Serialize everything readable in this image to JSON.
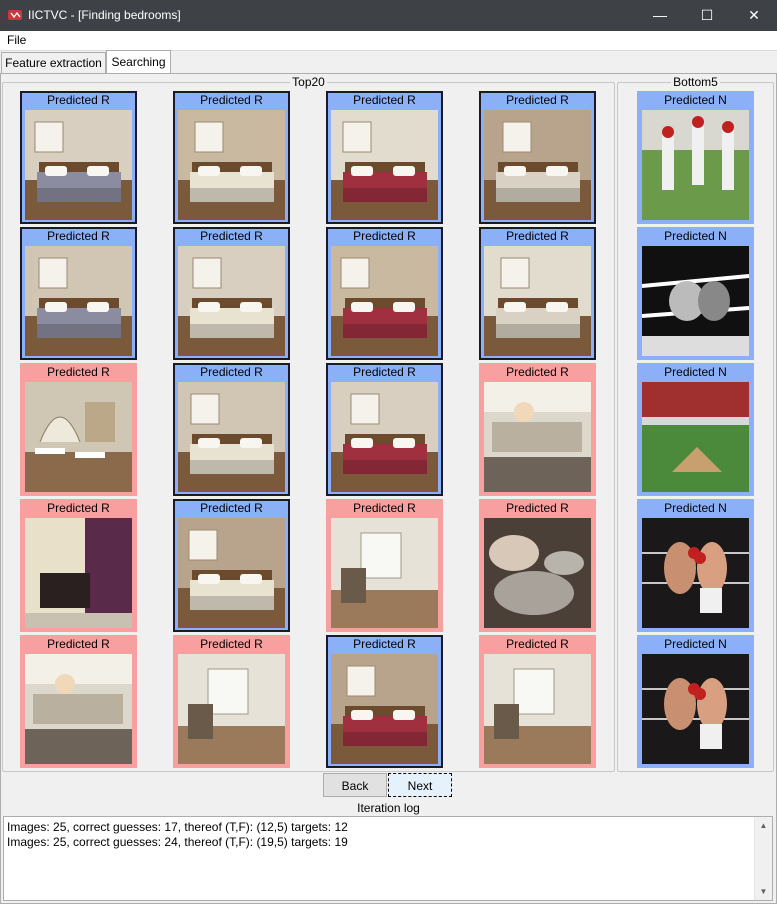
{
  "window": {
    "title": "IICTVC - [Finding bedrooms]",
    "minimize": "—",
    "maximize": "☐",
    "close": "✕"
  },
  "menu": {
    "file": "File"
  },
  "tabs": [
    {
      "label": "Feature extraction",
      "active": false
    },
    {
      "label": "Searching",
      "active": true
    }
  ],
  "top_group": {
    "title": "Top20",
    "cards": [
      {
        "label": "Predicted R",
        "kind": "r",
        "sel": true,
        "scene": "bedroom"
      },
      {
        "label": "Predicted R",
        "kind": "r",
        "sel": true,
        "scene": "bedroom"
      },
      {
        "label": "Predicted R",
        "kind": "r",
        "sel": true,
        "scene": "bedroom"
      },
      {
        "label": "Predicted R",
        "kind": "r",
        "sel": true,
        "scene": "bedroom"
      },
      {
        "label": "Predicted R",
        "kind": "r",
        "sel": true,
        "scene": "bedroom"
      },
      {
        "label": "Predicted R",
        "kind": "r",
        "sel": true,
        "scene": "bedroom"
      },
      {
        "label": "Predicted R",
        "kind": "r",
        "sel": true,
        "scene": "bedroom"
      },
      {
        "label": "Predicted R",
        "kind": "r",
        "sel": true,
        "scene": "bedroom"
      },
      {
        "label": "Predicted R",
        "kind": "n",
        "sel": false,
        "scene": "restaurant"
      },
      {
        "label": "Predicted R",
        "kind": "r",
        "sel": true,
        "scene": "bedroom"
      },
      {
        "label": "Predicted R",
        "kind": "r",
        "sel": true,
        "scene": "bedroom"
      },
      {
        "label": "Predicted R",
        "kind": "n",
        "sel": false,
        "scene": "kitchen"
      },
      {
        "label": "Predicted R",
        "kind": "n",
        "sel": false,
        "scene": "salon"
      },
      {
        "label": "Predicted R",
        "kind": "r",
        "sel": true,
        "scene": "bedroom"
      },
      {
        "label": "Predicted R",
        "kind": "n",
        "sel": false,
        "scene": "room"
      },
      {
        "label": "Predicted R",
        "kind": "n",
        "sel": false,
        "scene": "food"
      },
      {
        "label": "Predicted R",
        "kind": "n",
        "sel": false,
        "scene": "kitchen"
      },
      {
        "label": "Predicted R",
        "kind": "n",
        "sel": false,
        "scene": "room"
      },
      {
        "label": "Predicted R",
        "kind": "r",
        "sel": true,
        "scene": "bedroom"
      },
      {
        "label": "Predicted R",
        "kind": "n",
        "sel": false,
        "scene": "room"
      }
    ]
  },
  "bottom_group": {
    "title": "Bottom5",
    "cards": [
      {
        "label": "Predicted N",
        "kind": "r",
        "sel": false,
        "scene": "baseball"
      },
      {
        "label": "Predicted N",
        "kind": "r",
        "sel": false,
        "scene": "boxing-bw"
      },
      {
        "label": "Predicted N",
        "kind": "r",
        "sel": false,
        "scene": "stadium"
      },
      {
        "label": "Predicted N",
        "kind": "r",
        "sel": false,
        "scene": "boxing"
      },
      {
        "label": "Predicted N",
        "kind": "r",
        "sel": false,
        "scene": "boxing"
      }
    ]
  },
  "buttons": {
    "back": "Back",
    "next": "Next"
  },
  "log": {
    "title": "Iteration log",
    "lines": [
      "Images: 25, correct guesses: 17, thereof (T,F): (12,5) targets: 12",
      "Images: 25, correct guesses: 24, thereof (T,F): (19,5) targets: 19"
    ]
  },
  "colors": {
    "relevant_frame": "#8cb0f8",
    "nonrelevant_frame": "#f8a0a0",
    "titlebar": "#3e4247"
  }
}
